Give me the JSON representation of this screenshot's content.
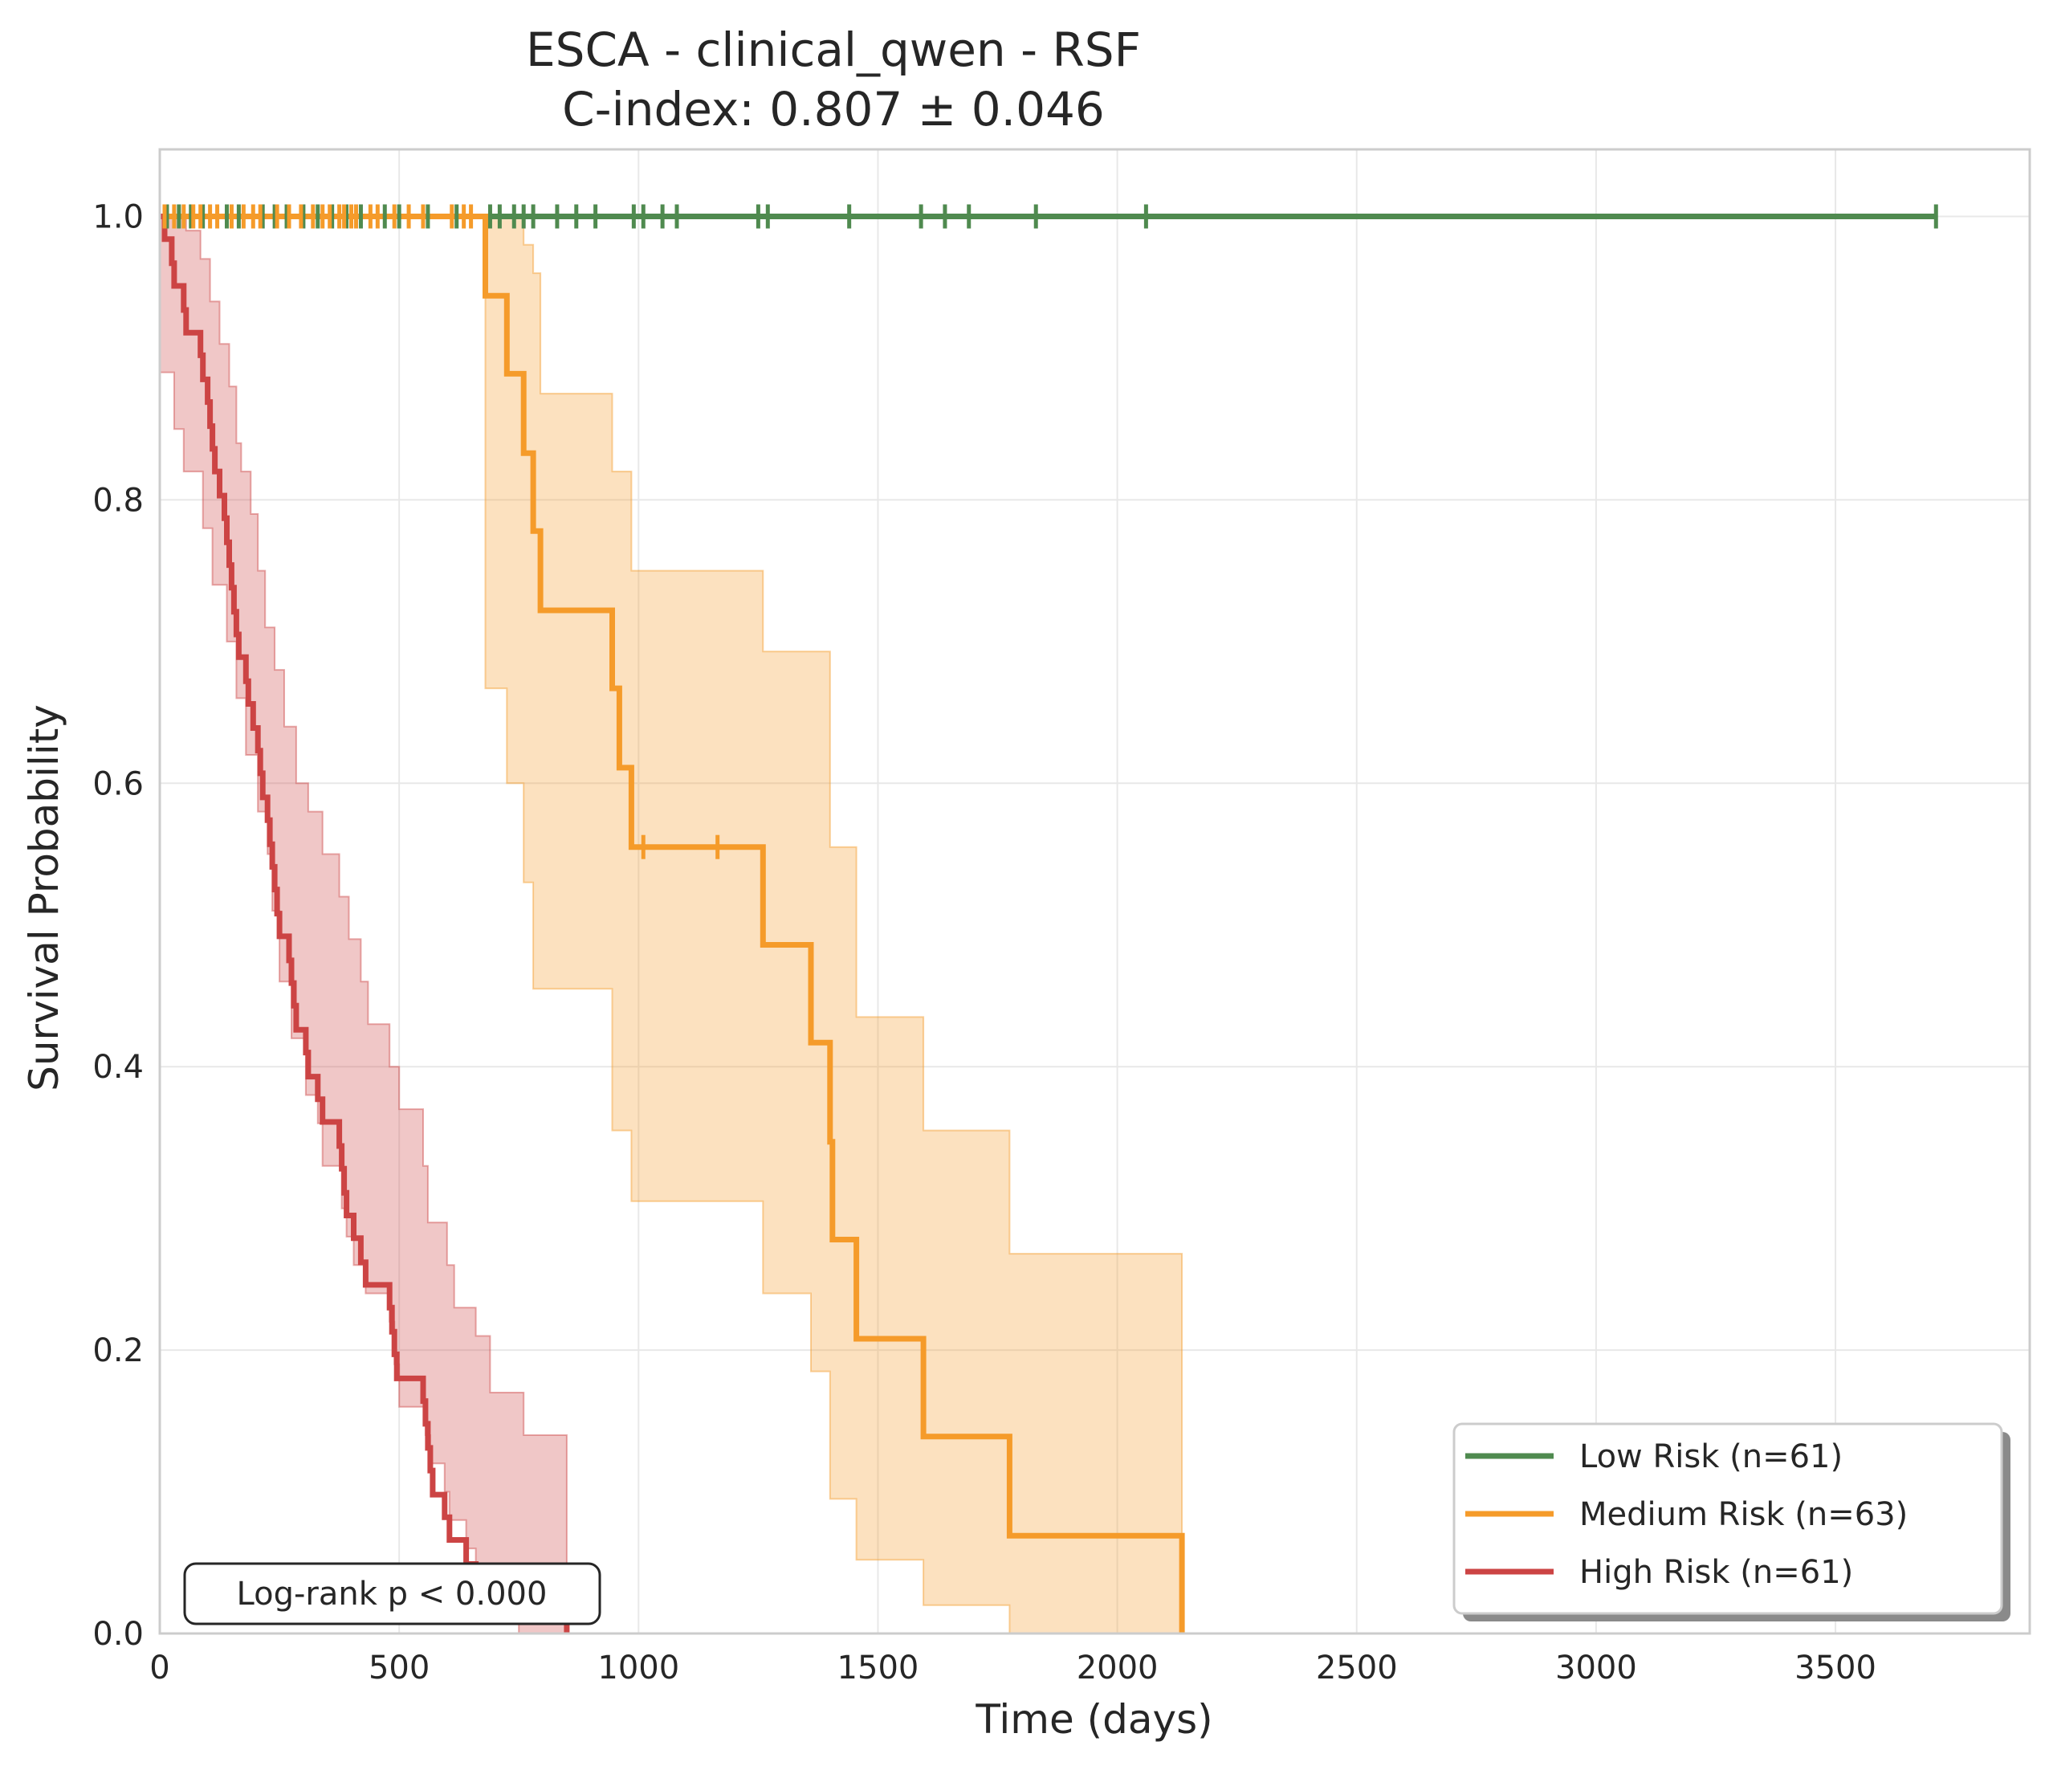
{
  "chart_data": {
    "type": "line",
    "subtype": "kaplan-meier",
    "title": "ESCA - clinical_qwen - RSF",
    "subtitle": "C-index: 0.807 ± 0.046",
    "xlabel": "Time (days)",
    "ylabel": "Survival Probability",
    "xlim": [
      0,
      3890
    ],
    "ylim": [
      0,
      1.05
    ],
    "xticks": [
      0,
      500,
      1000,
      1500,
      2000,
      2500,
      3000,
      3500
    ],
    "xtick_labels": [
      "0",
      "500",
      "1000",
      "1500",
      "2000",
      "2500",
      "3000",
      "3500"
    ],
    "yticks": [
      0.0,
      0.2,
      0.4,
      0.6,
      0.8,
      1.0
    ],
    "ytick_labels": [
      "0.0",
      "0.2",
      "0.4",
      "0.6",
      "0.8",
      "1.0"
    ],
    "grid": true,
    "legend_position": "lower-right",
    "annotation": "Log-rank p < 0.000",
    "series": [
      {
        "name": "Low Risk (n=61)",
        "color": "#4f8a4f",
        "steps": [
          [
            0,
            1.0
          ],
          [
            3710,
            1.0
          ]
        ],
        "censor_times": [
          15,
          40,
          65,
          90,
          140,
          165,
          215,
          240,
          265,
          300,
          330,
          360,
          390,
          420,
          470,
          500,
          560,
          620,
          690,
          710,
          740,
          760,
          780,
          830,
          870,
          910,
          990,
          1010,
          1050,
          1080,
          1250,
          1270,
          1440,
          1590,
          1640,
          1690,
          1830,
          2060,
          3710
        ],
        "ci_upper": [],
        "ci_lower": []
      },
      {
        "name": "Medium Risk (n=63)",
        "color": "#f59b2a",
        "steps": [
          [
            0,
            1.0
          ],
          [
            680,
            1.0
          ],
          [
            680,
            0.944
          ],
          [
            725,
            0.944
          ],
          [
            725,
            0.889
          ],
          [
            760,
            0.889
          ],
          [
            760,
            0.833
          ],
          [
            780,
            0.833
          ],
          [
            780,
            0.778
          ],
          [
            795,
            0.778
          ],
          [
            795,
            0.722
          ],
          [
            945,
            0.722
          ],
          [
            945,
            0.667
          ],
          [
            960,
            0.667
          ],
          [
            960,
            0.611
          ],
          [
            985,
            0.611
          ],
          [
            985,
            0.555
          ],
          [
            1260,
            0.555
          ],
          [
            1260,
            0.486
          ],
          [
            1360,
            0.486
          ],
          [
            1360,
            0.417
          ],
          [
            1400,
            0.417
          ],
          [
            1400,
            0.347
          ],
          [
            1405,
            0.347
          ],
          [
            1405,
            0.278
          ],
          [
            1455,
            0.278
          ],
          [
            1455,
            0.208
          ],
          [
            1595,
            0.208
          ],
          [
            1595,
            0.139
          ],
          [
            1775,
            0.139
          ],
          [
            1775,
            0.069
          ],
          [
            2135,
            0.069
          ],
          [
            2135,
            0.0
          ]
        ],
        "censor_times": [
          10,
          30,
          50,
          70,
          85,
          105,
          120,
          150,
          175,
          195,
          210,
          245,
          270,
          295,
          320,
          340,
          355,
          375,
          385,
          400,
          410,
          440,
          455,
          490,
          520,
          550,
          610,
          635,
          650,
          1010,
          1165
        ],
        "ci_upper": [
          [
            0,
            1.0
          ],
          [
            680,
            1.0
          ],
          [
            725,
            1.0
          ],
          [
            760,
            0.98
          ],
          [
            780,
            0.96
          ],
          [
            795,
            0.875
          ],
          [
            945,
            0.82
          ],
          [
            985,
            0.75
          ],
          [
            1260,
            0.693
          ],
          [
            1400,
            0.555
          ],
          [
            1455,
            0.435
          ],
          [
            1595,
            0.355
          ],
          [
            1775,
            0.268
          ],
          [
            2135,
            0.268
          ]
        ],
        "ci_lower": [
          [
            0,
            1.0
          ],
          [
            680,
            0.667
          ],
          [
            725,
            0.6
          ],
          [
            760,
            0.53
          ],
          [
            780,
            0.455
          ],
          [
            945,
            0.355
          ],
          [
            985,
            0.305
          ],
          [
            1260,
            0.24
          ],
          [
            1360,
            0.185
          ],
          [
            1400,
            0.095
          ],
          [
            1455,
            0.052
          ],
          [
            1595,
            0.02
          ],
          [
            1775,
            0.0
          ],
          [
            2135,
            0.0
          ]
        ]
      },
      {
        "name": "High Risk (n=61)",
        "color": "#cc4444",
        "steps": [
          [
            0,
            1.0
          ],
          [
            10,
            1.0
          ],
          [
            10,
            0.984
          ],
          [
            25,
            0.984
          ],
          [
            25,
            0.967
          ],
          [
            30,
            0.967
          ],
          [
            30,
            0.951
          ],
          [
            50,
            0.951
          ],
          [
            50,
            0.934
          ],
          [
            55,
            0.934
          ],
          [
            55,
            0.918
          ],
          [
            85,
            0.918
          ],
          [
            85,
            0.902
          ],
          [
            90,
            0.902
          ],
          [
            90,
            0.885
          ],
          [
            100,
            0.885
          ],
          [
            100,
            0.869
          ],
          [
            105,
            0.869
          ],
          [
            105,
            0.852
          ],
          [
            110,
            0.852
          ],
          [
            110,
            0.836
          ],
          [
            115,
            0.836
          ],
          [
            115,
            0.82
          ],
          [
            125,
            0.82
          ],
          [
            125,
            0.803
          ],
          [
            135,
            0.803
          ],
          [
            135,
            0.787
          ],
          [
            140,
            0.787
          ],
          [
            140,
            0.77
          ],
          [
            145,
            0.77
          ],
          [
            145,
            0.754
          ],
          [
            150,
            0.754
          ],
          [
            150,
            0.738
          ],
          [
            155,
            0.738
          ],
          [
            155,
            0.721
          ],
          [
            160,
            0.721
          ],
          [
            160,
            0.705
          ],
          [
            165,
            0.705
          ],
          [
            165,
            0.689
          ],
          [
            180,
            0.689
          ],
          [
            180,
            0.672
          ],
          [
            185,
            0.672
          ],
          [
            185,
            0.656
          ],
          [
            195,
            0.656
          ],
          [
            195,
            0.639
          ],
          [
            205,
            0.639
          ],
          [
            205,
            0.623
          ],
          [
            210,
            0.623
          ],
          [
            210,
            0.607
          ],
          [
            215,
            0.607
          ],
          [
            215,
            0.59
          ],
          [
            225,
            0.59
          ],
          [
            225,
            0.574
          ],
          [
            230,
            0.574
          ],
          [
            230,
            0.557
          ],
          [
            235,
            0.557
          ],
          [
            235,
            0.541
          ],
          [
            240,
            0.541
          ],
          [
            240,
            0.525
          ],
          [
            245,
            0.525
          ],
          [
            245,
            0.508
          ],
          [
            250,
            0.508
          ],
          [
            250,
            0.492
          ],
          [
            270,
            0.492
          ],
          [
            270,
            0.475
          ],
          [
            275,
            0.475
          ],
          [
            275,
            0.459
          ],
          [
            280,
            0.459
          ],
          [
            280,
            0.443
          ],
          [
            285,
            0.443
          ],
          [
            285,
            0.426
          ],
          [
            305,
            0.426
          ],
          [
            305,
            0.41
          ],
          [
            310,
            0.41
          ],
          [
            310,
            0.393
          ],
          [
            330,
            0.393
          ],
          [
            330,
            0.377
          ],
          [
            340,
            0.377
          ],
          [
            340,
            0.361
          ],
          [
            375,
            0.361
          ],
          [
            375,
            0.344
          ],
          [
            380,
            0.344
          ],
          [
            380,
            0.328
          ],
          [
            385,
            0.328
          ],
          [
            385,
            0.311
          ],
          [
            390,
            0.311
          ],
          [
            390,
            0.295
          ],
          [
            405,
            0.295
          ],
          [
            405,
            0.279
          ],
          [
            420,
            0.279
          ],
          [
            420,
            0.262
          ],
          [
            430,
            0.262
          ],
          [
            430,
            0.246
          ],
          [
            480,
            0.246
          ],
          [
            480,
            0.23
          ],
          [
            485,
            0.23
          ],
          [
            485,
            0.213
          ],
          [
            490,
            0.213
          ],
          [
            490,
            0.197
          ],
          [
            495,
            0.197
          ],
          [
            495,
            0.18
          ],
          [
            550,
            0.18
          ],
          [
            550,
            0.164
          ],
          [
            555,
            0.164
          ],
          [
            555,
            0.148
          ],
          [
            560,
            0.148
          ],
          [
            560,
            0.131
          ],
          [
            565,
            0.131
          ],
          [
            565,
            0.115
          ],
          [
            570,
            0.115
          ],
          [
            570,
            0.098
          ],
          [
            595,
            0.098
          ],
          [
            595,
            0.082
          ],
          [
            605,
            0.082
          ],
          [
            605,
            0.066
          ],
          [
            640,
            0.066
          ],
          [
            640,
            0.049
          ],
          [
            660,
            0.049
          ],
          [
            660,
            0.033
          ],
          [
            690,
            0.033
          ],
          [
            690,
            0.016
          ],
          [
            850,
            0.016
          ],
          [
            850,
            0.0
          ]
        ],
        "censor_times": [],
        "ci_upper": [
          [
            0,
            1.0
          ],
          [
            55,
            0.99
          ],
          [
            85,
            0.97
          ],
          [
            105,
            0.94
          ],
          [
            125,
            0.91
          ],
          [
            145,
            0.88
          ],
          [
            160,
            0.84
          ],
          [
            170,
            0.82
          ],
          [
            190,
            0.79
          ],
          [
            205,
            0.75
          ],
          [
            220,
            0.71
          ],
          [
            240,
            0.68
          ],
          [
            260,
            0.64
          ],
          [
            285,
            0.6
          ],
          [
            310,
            0.58
          ],
          [
            340,
            0.55
          ],
          [
            375,
            0.52
          ],
          [
            395,
            0.49
          ],
          [
            420,
            0.46
          ],
          [
            435,
            0.43
          ],
          [
            480,
            0.4
          ],
          [
            500,
            0.37
          ],
          [
            550,
            0.33
          ],
          [
            560,
            0.29
          ],
          [
            600,
            0.26
          ],
          [
            615,
            0.23
          ],
          [
            660,
            0.21
          ],
          [
            690,
            0.17
          ],
          [
            760,
            0.14
          ],
          [
            810,
            0.14
          ],
          [
            850,
            0.14
          ]
        ],
        "ci_lower": [
          [
            0,
            0.89
          ],
          [
            30,
            0.85
          ],
          [
            50,
            0.82
          ],
          [
            90,
            0.78
          ],
          [
            110,
            0.74
          ],
          [
            140,
            0.7
          ],
          [
            160,
            0.66
          ],
          [
            180,
            0.62
          ],
          [
            205,
            0.58
          ],
          [
            225,
            0.55
          ],
          [
            235,
            0.51
          ],
          [
            250,
            0.46
          ],
          [
            275,
            0.42
          ],
          [
            305,
            0.38
          ],
          [
            330,
            0.36
          ],
          [
            340,
            0.33
          ],
          [
            380,
            0.3
          ],
          [
            390,
            0.28
          ],
          [
            405,
            0.26
          ],
          [
            430,
            0.24
          ],
          [
            480,
            0.22
          ],
          [
            490,
            0.19
          ],
          [
            500,
            0.16
          ],
          [
            555,
            0.14
          ],
          [
            565,
            0.12
          ],
          [
            595,
            0.1
          ],
          [
            605,
            0.08
          ],
          [
            640,
            0.06
          ],
          [
            660,
            0.04
          ],
          [
            690,
            0.02
          ],
          [
            750,
            0.0
          ],
          [
            850,
            0.0
          ]
        ]
      }
    ]
  }
}
